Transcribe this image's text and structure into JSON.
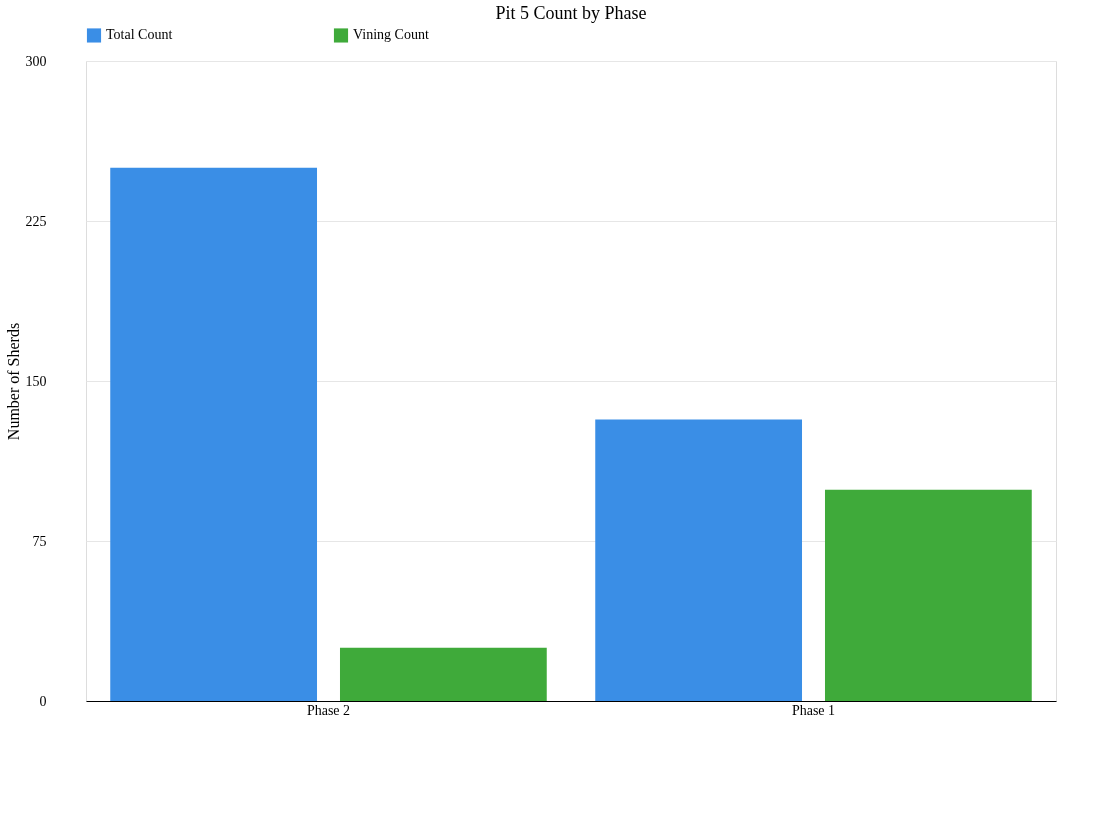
{
  "chart_data": {
    "type": "bar",
    "title": "Pit 5 Count by Phase",
    "ylabel": "Number of  Sherds",
    "categories": [
      "Phase 2",
      "Phase 1"
    ],
    "series": [
      {
        "name": "Total Count",
        "color": "#3a8ee6",
        "values": [
          250,
          132
        ]
      },
      {
        "name": "Vining Count",
        "color": "#3faa3a",
        "values": [
          25,
          99
        ]
      }
    ],
    "ylim": [
      0,
      300
    ],
    "yticks": [
      0,
      75,
      150,
      225,
      300
    ],
    "grid": "y",
    "legend": "top"
  }
}
